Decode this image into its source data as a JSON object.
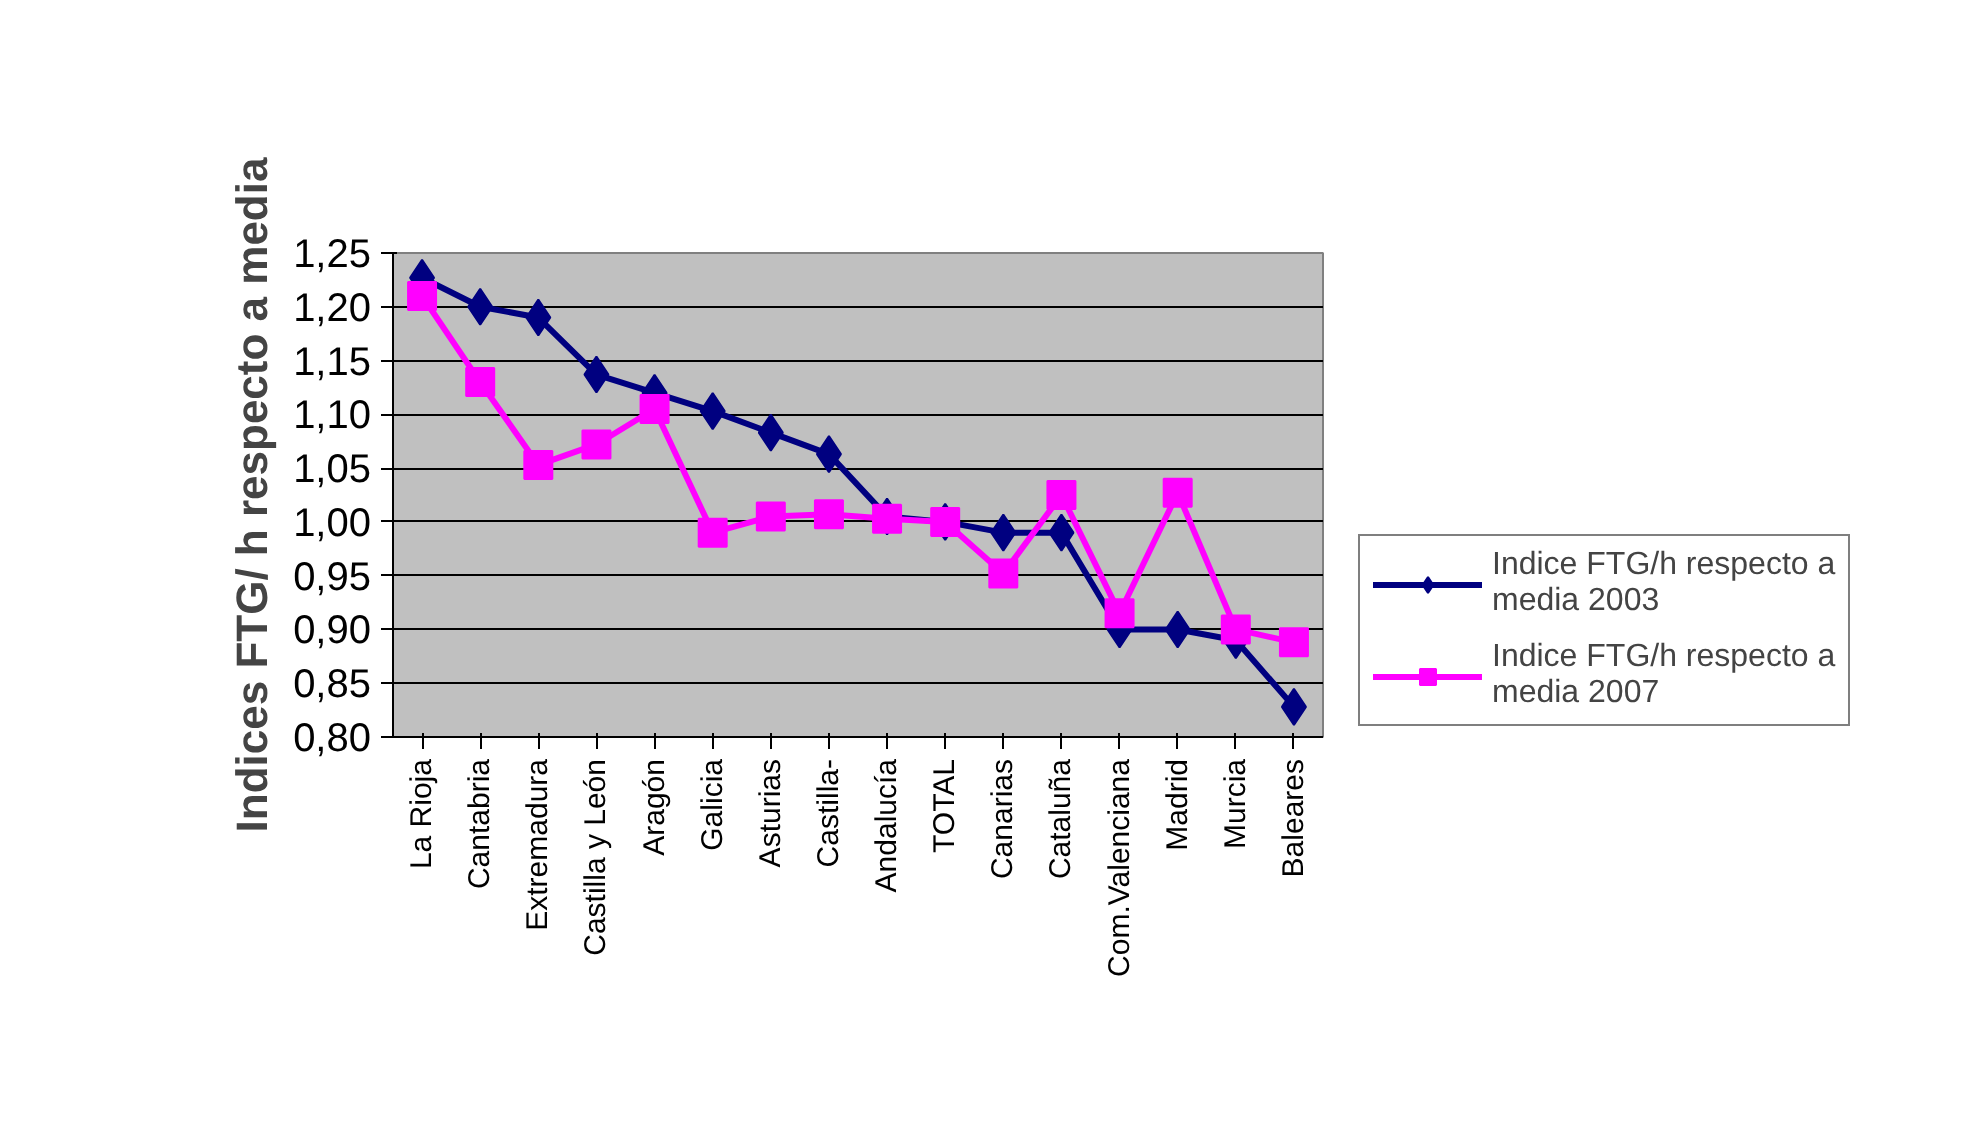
{
  "chart_data": {
    "type": "line",
    "ylabel": "Indices FTG/ h respecto a media",
    "categories": [
      "La Rioja",
      "Cantabria",
      "Extremadura",
      "Castilla y León",
      "Aragón",
      "Galicia",
      "Asturias",
      "Castilla-",
      "Andalucía",
      "TOTAL",
      "Canarias",
      "Cataluña",
      "Com.Valenciana",
      "Madrid",
      "Murcia",
      "Baleares"
    ],
    "series": [
      {
        "name": "Indice FTG/h respecto a media 2003",
        "color": "#000080",
        "marker": "diamond",
        "values": [
          1.227,
          1.2,
          1.19,
          1.137,
          1.12,
          1.103,
          1.083,
          1.063,
          1.005,
          1.0,
          0.99,
          0.99,
          0.9,
          0.9,
          0.89,
          0.828
        ]
      },
      {
        "name": "Indice FTG/h respecto a media 2007",
        "color": "#ff00ff",
        "marker": "square",
        "values": [
          1.21,
          1.13,
          1.053,
          1.072,
          1.105,
          0.99,
          1.005,
          1.007,
          1.003,
          1.0,
          0.952,
          1.025,
          0.915,
          1.027,
          0.9,
          0.888
        ]
      }
    ],
    "ylim": [
      0.8,
      1.25
    ],
    "yticks": [
      {
        "value": 0.8,
        "label": "0,80"
      },
      {
        "value": 0.85,
        "label": "0,85"
      },
      {
        "value": 0.9,
        "label": "0,90"
      },
      {
        "value": 0.95,
        "label": "0,95"
      },
      {
        "value": 1.0,
        "label": "1,00"
      },
      {
        "value": 1.05,
        "label": "1,05"
      },
      {
        "value": 1.1,
        "label": "1,10"
      },
      {
        "value": 1.15,
        "label": "1,15"
      },
      {
        "value": 1.2,
        "label": "1,20"
      },
      {
        "value": 1.25,
        "label": "1,25"
      }
    ],
    "grid": "y",
    "legend": "right",
    "line_style": "solid"
  }
}
